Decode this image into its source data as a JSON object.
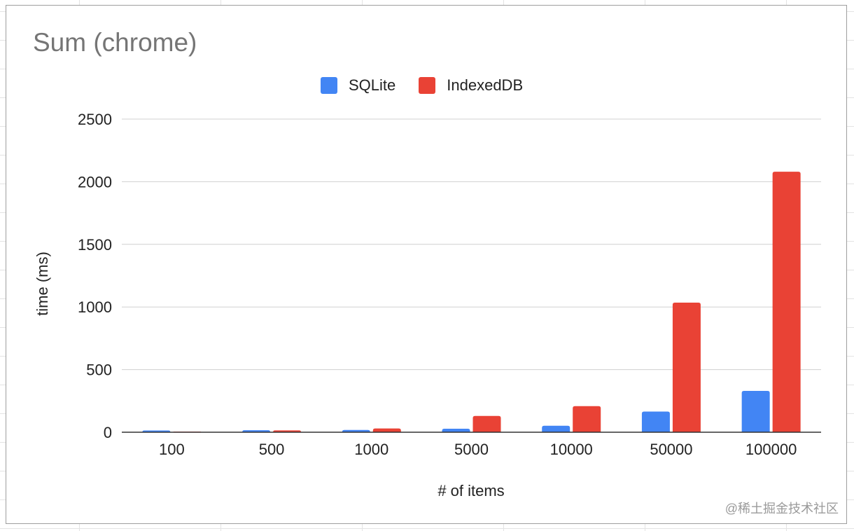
{
  "chart_data": {
    "type": "bar",
    "title": "Sum (chrome)",
    "xlabel": "# of items",
    "ylabel": "time (ms)",
    "categories": [
      "100",
      "500",
      "1000",
      "5000",
      "10000",
      "50000",
      "100000"
    ],
    "series": [
      {
        "name": "SQLite",
        "color": "#4285f4",
        "values": [
          14,
          16,
          18,
          28,
          52,
          165,
          330
        ]
      },
      {
        "name": "IndexedDB",
        "color": "#e94235",
        "values": [
          5,
          15,
          30,
          130,
          208,
          1035,
          2080
        ]
      }
    ],
    "ylim": [
      0,
      2500
    ],
    "yticks": [
      "0",
      "500",
      "1000",
      "1500",
      "2000",
      "2500"
    ],
    "grid": true,
    "legend_position": "top-center"
  },
  "watermark": "@稀土掘金技术社区"
}
